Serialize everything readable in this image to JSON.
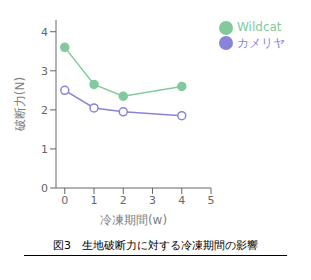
{
  "chart_data": {
    "type": "line",
    "title": "図3　生地破断力に対する冷凍期間の影響",
    "x_label": "冷凍期間(w)",
    "y_label": "破断力(N)",
    "x": [
      0,
      1,
      2,
      4
    ],
    "series": [
      {
        "name": "カメリヤ",
        "values": [
          2.5,
          2.05,
          1.95,
          1.85
        ],
        "marker": "circle_open"
      },
      {
        "name": "Wildcat",
        "values": [
          3.6,
          2.65,
          2.35,
          2.6
        ],
        "marker": "circle"
      }
    ],
    "xlim": [
      -0.3,
      5.0
    ],
    "ylim": [
      0,
      4.3
    ],
    "xticks": [
      0,
      1,
      2,
      3,
      4,
      5
    ],
    "yticks": [
      0,
      1,
      2,
      3,
      4
    ],
    "grid": false,
    "legend": "right"
  }
}
